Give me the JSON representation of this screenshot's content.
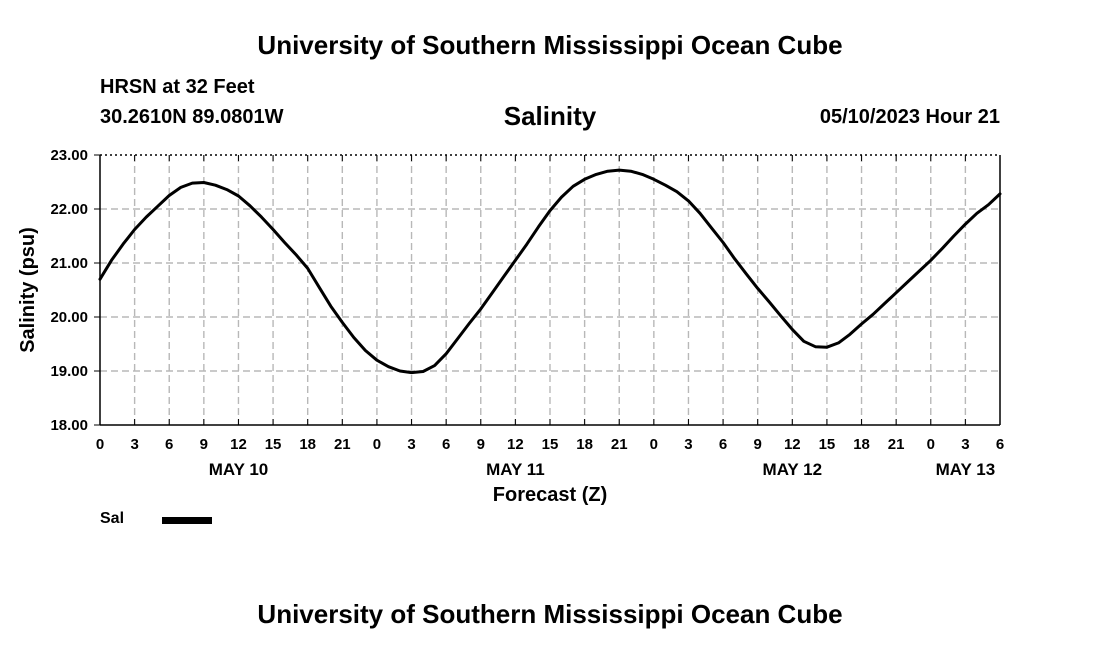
{
  "header": {
    "title": "University of Southern Mississippi Ocean Cube",
    "station": "HRSN at 32 Feet",
    "coords": "30.2610N  89.0801W",
    "variable": "Salinity",
    "datetime": "05/10/2023 Hour 21"
  },
  "footer": {
    "title": "University of Southern Mississippi Ocean Cube"
  },
  "legend": {
    "label": "Sal",
    "color": "#000000"
  },
  "chart_data": {
    "type": "line",
    "title": "Salinity",
    "xlabel": "Forecast (Z)",
    "ylabel": "Salinity (psu)",
    "grid": true,
    "xlim": [
      0,
      78
    ],
    "ylim": [
      18.0,
      23.0
    ],
    "yticks": [
      "18.00",
      "19.00",
      "20.00",
      "21.00",
      "22.00",
      "23.00"
    ],
    "xtick_labels": [
      "0",
      "3",
      "6",
      "9",
      "12",
      "15",
      "18",
      "21",
      "0",
      "3",
      "6",
      "9",
      "12",
      "15",
      "18",
      "21",
      "0",
      "3",
      "6",
      "9",
      "12",
      "15",
      "18",
      "21",
      "0",
      "3",
      "6"
    ],
    "date_labels": [
      {
        "label": "MAY 10",
        "hour": 12
      },
      {
        "label": "MAY 11",
        "hour": 36
      },
      {
        "label": "MAY 12",
        "hour": 60
      },
      {
        "label": "MAY 13",
        "hour": 75
      }
    ],
    "series": [
      {
        "name": "Sal",
        "x": [
          0,
          1,
          2,
          3,
          4,
          5,
          6,
          7,
          8,
          9,
          10,
          11,
          12,
          13,
          14,
          15,
          16,
          17,
          18,
          19,
          20,
          21,
          22,
          23,
          24,
          25,
          26,
          27,
          28,
          29,
          30,
          31,
          32,
          33,
          34,
          35,
          36,
          37,
          38,
          39,
          40,
          41,
          42,
          43,
          44,
          45,
          46,
          47,
          48,
          49,
          50,
          51,
          52,
          53,
          54,
          55,
          56,
          57,
          58,
          59,
          60,
          61,
          62,
          63,
          64,
          65,
          66,
          67,
          68,
          69,
          70,
          71,
          72,
          73,
          74,
          75,
          76,
          77,
          78
        ],
        "values": [
          20.7,
          21.05,
          21.35,
          21.62,
          21.85,
          22.05,
          22.25,
          22.4,
          22.48,
          22.49,
          22.44,
          22.36,
          22.24,
          22.06,
          21.85,
          21.62,
          21.38,
          21.15,
          20.9,
          20.55,
          20.2,
          19.9,
          19.62,
          19.38,
          19.2,
          19.08,
          19.0,
          18.97,
          18.99,
          19.1,
          19.32,
          19.6,
          19.88,
          20.15,
          20.45,
          20.75,
          21.05,
          21.35,
          21.67,
          21.97,
          22.22,
          22.42,
          22.55,
          22.64,
          22.7,
          22.72,
          22.7,
          22.64,
          22.55,
          22.44,
          22.32,
          22.15,
          21.92,
          21.65,
          21.38,
          21.08,
          20.8,
          20.53,
          20.28,
          20.02,
          19.77,
          19.55,
          19.45,
          19.44,
          19.52,
          19.68,
          19.87,
          20.05,
          20.25,
          20.45,
          20.65,
          20.85,
          21.05,
          21.27,
          21.5,
          21.72,
          21.92,
          22.08,
          22.28
        ]
      }
    ]
  }
}
